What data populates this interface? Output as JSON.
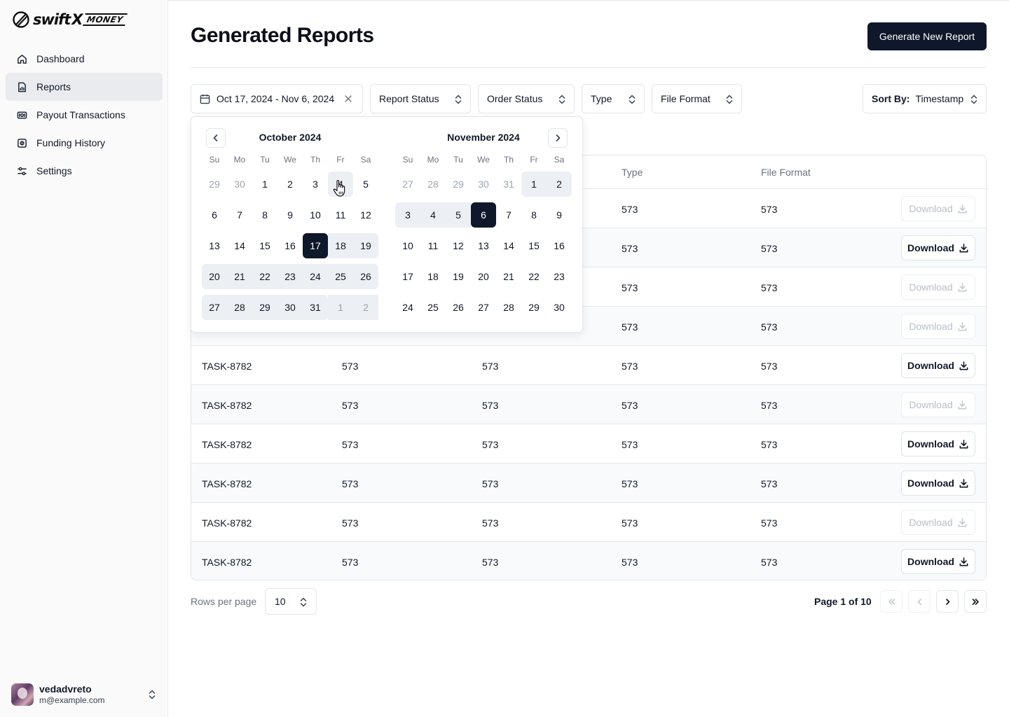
{
  "brand": {
    "swift": "swift",
    "x": "X",
    "money": "MONEY"
  },
  "sidebar": {
    "items": [
      {
        "label": "Dashboard",
        "icon": "home-icon",
        "active": false
      },
      {
        "label": "Reports",
        "icon": "report-icon",
        "active": true
      },
      {
        "label": "Payout Transactions",
        "icon": "payout-icon",
        "active": false
      },
      {
        "label": "Funding History",
        "icon": "funding-icon",
        "active": false
      },
      {
        "label": "Settings",
        "icon": "settings-sliders-icon",
        "active": false
      }
    ],
    "user": {
      "name": "vedadvreto",
      "email": "m@example.com"
    }
  },
  "header": {
    "title": "Generated Reports",
    "primary_button": "Generate New Report"
  },
  "filters": {
    "date_range": "Oct 17, 2024 - Nov 6, 2024",
    "report_status": "Report Status",
    "order_status": "Order Status",
    "type": "Type",
    "file_format": "File Format",
    "sort_label": "Sort By:",
    "sort_value": "Timestamp"
  },
  "calendar": {
    "weekdays": [
      "Su",
      "Mo",
      "Tu",
      "We",
      "Th",
      "Fr",
      "Sa"
    ],
    "months": [
      {
        "title": "October 2024",
        "weeks": [
          [
            "29",
            "30",
            "1",
            "2",
            "3",
            "4",
            "5"
          ],
          [
            "6",
            "7",
            "8",
            "9",
            "10",
            "11",
            "12"
          ],
          [
            "13",
            "14",
            "15",
            "16",
            "17",
            "18",
            "19"
          ],
          [
            "20",
            "21",
            "22",
            "23",
            "24",
            "25",
            "26"
          ],
          [
            "27",
            "28",
            "29",
            "30",
            "31",
            "1",
            "2"
          ]
        ]
      },
      {
        "title": "November 2024",
        "weeks": [
          [
            "27",
            "28",
            "29",
            "30",
            "31",
            "1",
            "2"
          ],
          [
            "3",
            "4",
            "5",
            "6",
            "7",
            "8",
            "9"
          ],
          [
            "10",
            "11",
            "12",
            "13",
            "14",
            "15",
            "16"
          ],
          [
            "17",
            "18",
            "19",
            "20",
            "21",
            "22",
            "23"
          ],
          [
            "24",
            "25",
            "26",
            "27",
            "28",
            "29",
            "30"
          ]
        ]
      }
    ]
  },
  "table": {
    "columns": [
      "",
      "",
      "",
      "Type",
      "File Format",
      ""
    ],
    "download_label": "Download",
    "rows": [
      {
        "id": "",
        "c2": "",
        "c3": "",
        "type": "573",
        "format": "573",
        "download_enabled": false
      },
      {
        "id": "",
        "c2": "",
        "c3": "",
        "type": "573",
        "format": "573",
        "download_enabled": true
      },
      {
        "id": "",
        "c2": "",
        "c3": "",
        "type": "573",
        "format": "573",
        "download_enabled": false
      },
      {
        "id": "",
        "c2": "",
        "c3": "",
        "type": "573",
        "format": "573",
        "download_enabled": false
      },
      {
        "id": "TASK-8782",
        "c2": "573",
        "c3": "573",
        "type": "573",
        "format": "573",
        "download_enabled": true
      },
      {
        "id": "TASK-8782",
        "c2": "573",
        "c3": "573",
        "type": "573",
        "format": "573",
        "download_enabled": false
      },
      {
        "id": "TASK-8782",
        "c2": "573",
        "c3": "573",
        "type": "573",
        "format": "573",
        "download_enabled": true
      },
      {
        "id": "TASK-8782",
        "c2": "573",
        "c3": "573",
        "type": "573",
        "format": "573",
        "download_enabled": true
      },
      {
        "id": "TASK-8782",
        "c2": "573",
        "c3": "573",
        "type": "573",
        "format": "573",
        "download_enabled": false
      },
      {
        "id": "TASK-8782",
        "c2": "573",
        "c3": "573",
        "type": "573",
        "format": "573",
        "download_enabled": true
      }
    ]
  },
  "pagination": {
    "rows_label": "Rows per page",
    "rows_value": "10",
    "page_info": "Page 1 of 10"
  },
  "colors": {
    "primary": "#0f172a",
    "range": "#eceff3",
    "muted": "#6b7280"
  }
}
